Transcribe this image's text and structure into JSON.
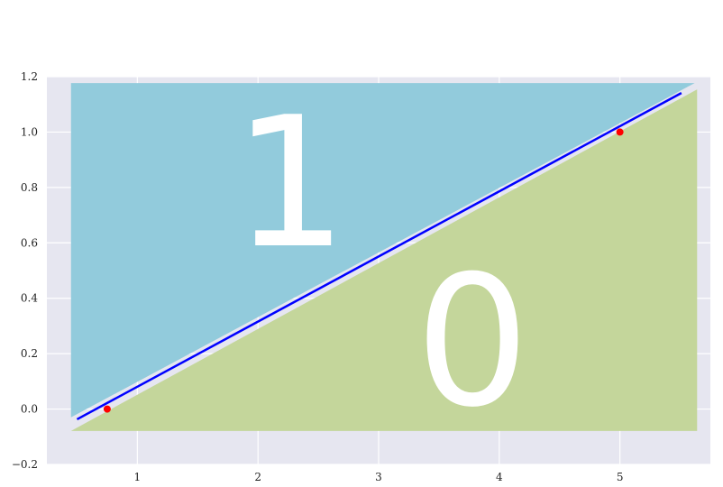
{
  "chart_data": {
    "type": "area",
    "title": "",
    "xlabel": "",
    "ylabel": "",
    "xlim": [
      0.25,
      5.75
    ],
    "ylim": [
      -0.2,
      1.2
    ],
    "grid": true,
    "x_ticks": [
      "1",
      "2",
      "3",
      "4",
      "5"
    ],
    "x_tick_values": [
      1,
      2,
      3,
      4,
      5
    ],
    "y_ticks": [
      "−0.2",
      "0.0",
      "0.2",
      "0.4",
      "0.6",
      "0.8",
      "1.0",
      "1.2"
    ],
    "y_tick_values": [
      -0.2,
      0.0,
      0.2,
      0.4,
      0.6,
      0.8,
      1.0,
      1.2
    ],
    "regions": [
      {
        "label": "1",
        "color": "#92cbdc",
        "polygon": [
          [
            0.45,
            1.177
          ],
          [
            5.62,
            1.177
          ],
          [
            0.45,
            -0.03
          ]
        ]
      },
      {
        "label": "0",
        "color": "#c4d69b",
        "polygon": [
          [
            0.45,
            -0.079
          ],
          [
            5.64,
            -0.079
          ],
          [
            5.64,
            1.154
          ]
        ]
      }
    ],
    "line": {
      "color": "#0000ff",
      "x": [
        0.5,
        5.51
      ],
      "y": [
        -0.037,
        1.141
      ]
    },
    "points": {
      "color": "#ff0000",
      "x": [
        0.75,
        5.0
      ],
      "y": [
        0.0,
        1.0
      ]
    },
    "background": "#e6e6f0"
  }
}
